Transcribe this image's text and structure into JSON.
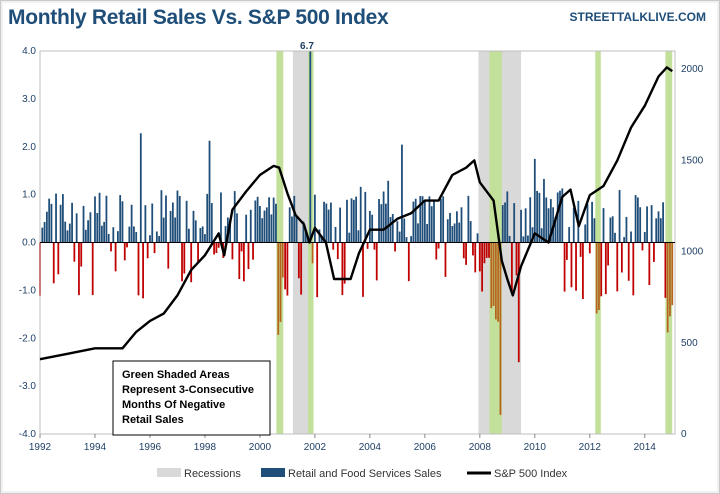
{
  "title": "Monthly Retail Sales Vs. S&P 500 Index",
  "brand": "STREETTALKLIVE.COM",
  "annotation_lines": [
    "Green Shaded Areas",
    "Represent 3-Consecutive",
    "Months Of Negative",
    "Retail Sales"
  ],
  "peak_label": "6.7",
  "legend": {
    "recessions": "Recessions",
    "sales": "Retail and Food Services Sales",
    "sp500": "S&P 500 Index"
  },
  "colors": {
    "positive_bar": "#1f4e79",
    "negative_bar": "#c00000",
    "recession": "#d9d9d9",
    "green_shade": "#c2e09a",
    "sp500_line": "#000000",
    "axis_text": "#1f3f66"
  },
  "chart_data": {
    "type": "bar",
    "x_ticks": [
      "1992",
      "1994",
      "1996",
      "1998",
      "2000",
      "2002",
      "2004",
      "2006",
      "2008",
      "2010",
      "2012",
      "2014"
    ],
    "y_left_ticks": [
      "4.0",
      "3.0",
      "2.0",
      "1.0",
      "0.0",
      "-1.0",
      "-2.0",
      "-3.0",
      "-4.0"
    ],
    "y_right_ticks": [
      "2000",
      "1500",
      "1000",
      "500",
      "0"
    ],
    "ylim_left": [
      -4,
      4
    ],
    "ylim_right": [
      0,
      2100
    ],
    "xlim": [
      1992,
      2015.1
    ],
    "recessions": [
      [
        2001.2,
        2001.9
      ],
      [
        2007.95,
        2009.5
      ]
    ],
    "green_shaded": [
      [
        2000.6,
        2000.85
      ],
      [
        2001.75,
        2001.95
      ],
      [
        2008.35,
        2008.8
      ],
      [
        2012.2,
        2012.4
      ],
      [
        2014.75,
        2015.0
      ]
    ],
    "sales_peak": {
      "x": 2001.8,
      "value": 6.7
    },
    "sp500": [
      [
        1992,
        410
      ],
      [
        1993,
        440
      ],
      [
        1994,
        470
      ],
      [
        1995,
        470
      ],
      [
        1995.5,
        560
      ],
      [
        1996,
        620
      ],
      [
        1996.5,
        660
      ],
      [
        1997,
        760
      ],
      [
        1997.5,
        900
      ],
      [
        1998,
        980
      ],
      [
        1998.5,
        1100
      ],
      [
        1998.7,
        980
      ],
      [
        1999,
        1230
      ],
      [
        1999.5,
        1330
      ],
      [
        2000,
        1420
      ],
      [
        2000.5,
        1470
      ],
      [
        2000.7,
        1460
      ],
      [
        2001,
        1320
      ],
      [
        2001.3,
        1200
      ],
      [
        2001.6,
        1150
      ],
      [
        2001.8,
        1050
      ],
      [
        2002,
        1130
      ],
      [
        2002.4,
        1050
      ],
      [
        2002.7,
        850
      ],
      [
        2003,
        850
      ],
      [
        2003.3,
        850
      ],
      [
        2003.6,
        990
      ],
      [
        2004,
        1120
      ],
      [
        2004.5,
        1120
      ],
      [
        2005,
        1180
      ],
      [
        2005.5,
        1210
      ],
      [
        2006,
        1280
      ],
      [
        2006.5,
        1280
      ],
      [
        2007,
        1420
      ],
      [
        2007.5,
        1460
      ],
      [
        2007.8,
        1500
      ],
      [
        2008,
        1380
      ],
      [
        2008.5,
        1280
      ],
      [
        2008.8,
        950
      ],
      [
        2009,
        850
      ],
      [
        2009.2,
        760
      ],
      [
        2009.5,
        920
      ],
      [
        2010,
        1100
      ],
      [
        2010.5,
        1050
      ],
      [
        2011,
        1300
      ],
      [
        2011.3,
        1340
      ],
      [
        2011.6,
        1140
      ],
      [
        2012,
        1310
      ],
      [
        2012.5,
        1360
      ],
      [
        2013,
        1500
      ],
      [
        2013.5,
        1680
      ],
      [
        2014,
        1800
      ],
      [
        2014.5,
        1960
      ],
      [
        2014.8,
        2010
      ],
      [
        2015,
        1990
      ]
    ]
  }
}
